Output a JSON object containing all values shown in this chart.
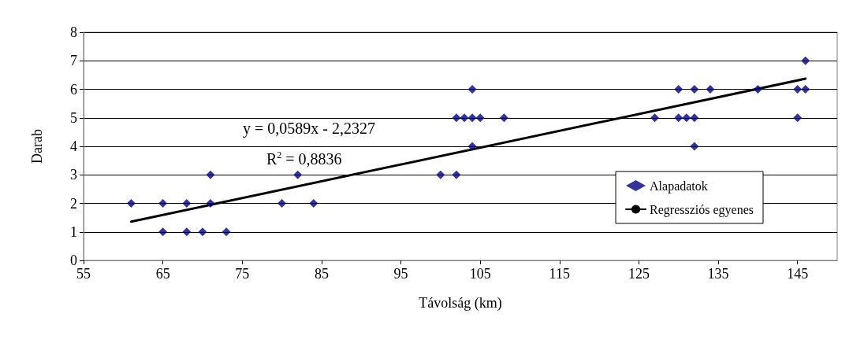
{
  "chart_data": {
    "type": "scatter",
    "xlabel": "Távolság (km)",
    "ylabel": "Darab",
    "xlim": [
      55,
      150
    ],
    "xticks": [
      55,
      65,
      75,
      85,
      95,
      105,
      115,
      125,
      135,
      145
    ],
    "ylim": [
      0,
      8
    ],
    "yticks": [
      0,
      1,
      2,
      3,
      4,
      5,
      6,
      7,
      8
    ],
    "grid": "y",
    "legend": "right",
    "marker": "diamond",
    "annotations": [
      "y = 0,0589x - 2,2327",
      "R$^{2}$ = 0,8836"
    ],
    "series": [
      {
        "name": "Alapadatok",
        "color": "#000080",
        "x": [
          61,
          65,
          65,
          68,
          68,
          70,
          71,
          71,
          73,
          80,
          82,
          84,
          100,
          102,
          102,
          103,
          104,
          104,
          104,
          105,
          108,
          127,
          130,
          130,
          131,
          132,
          132,
          132,
          134,
          140,
          145,
          145,
          146,
          146
        ],
        "values": [
          2,
          2,
          1,
          2,
          1,
          1,
          3,
          2,
          1,
          2,
          3,
          2,
          3,
          3,
          5,
          5,
          6,
          5,
          4,
          5,
          5,
          5,
          6,
          5,
          5,
          6,
          5,
          4,
          6,
          6,
          6,
          5,
          7,
          6
        ]
      },
      {
        "name": "Regressziós egyenes",
        "type": "line",
        "color": "#000000",
        "marker": "none",
        "x": [
          61,
          146
        ],
        "values": [
          1.36,
          6.37
        ]
      }
    ]
  }
}
